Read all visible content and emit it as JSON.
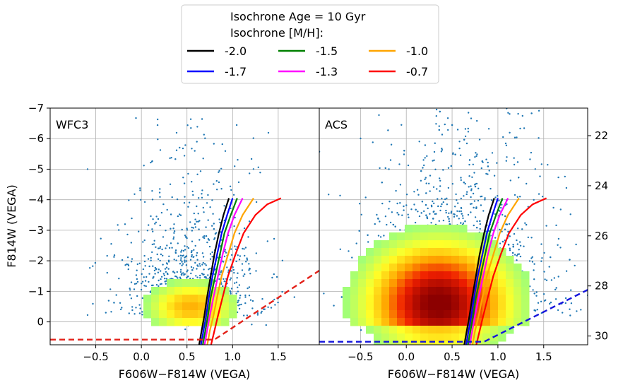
{
  "chart_data": {
    "type": "scatter",
    "legend": {
      "title_lines": [
        "Isochrone Age = 10 Gyr",
        "Isochrone [M/H]:"
      ],
      "placement": "top-center",
      "entries": [
        {
          "label": "-2.0",
          "color": "#000000"
        },
        {
          "label": "-1.7",
          "color": "#0000ff"
        },
        {
          "label": "-1.5",
          "color": "#008000"
        },
        {
          "label": "-1.3",
          "color": "#ff00ff"
        },
        {
          "label": "-1.0",
          "color": "#ffa500"
        },
        {
          "label": "-0.7",
          "color": "#ff0000"
        }
      ]
    },
    "isochrones": [
      {
        "mh": "-2.0",
        "color": "#000000",
        "points": [
          [
            0.63,
            0.8
          ],
          [
            0.66,
            0.3
          ],
          [
            0.69,
            -0.2
          ],
          [
            0.72,
            -0.8
          ],
          [
            0.76,
            -1.5
          ],
          [
            0.8,
            -2.2
          ],
          [
            0.85,
            -2.9
          ],
          [
            0.9,
            -3.5
          ],
          [
            0.96,
            -4.05
          ]
        ]
      },
      {
        "mh": "-1.7",
        "color": "#0000ff",
        "points": [
          [
            0.65,
            0.8
          ],
          [
            0.68,
            0.3
          ],
          [
            0.71,
            -0.2
          ],
          [
            0.74,
            -0.8
          ],
          [
            0.78,
            -1.5
          ],
          [
            0.83,
            -2.2
          ],
          [
            0.88,
            -2.9
          ],
          [
            0.94,
            -3.5
          ],
          [
            1.0,
            -4.05
          ]
        ]
      },
      {
        "mh": "-1.5",
        "color": "#008000",
        "points": [
          [
            0.67,
            0.8
          ],
          [
            0.7,
            0.3
          ],
          [
            0.73,
            -0.2
          ],
          [
            0.76,
            -0.8
          ],
          [
            0.81,
            -1.5
          ],
          [
            0.86,
            -2.2
          ],
          [
            0.91,
            -2.9
          ],
          [
            0.98,
            -3.5
          ],
          [
            1.05,
            -4.05
          ]
        ]
      },
      {
        "mh": "-1.3",
        "color": "#ff00ff",
        "points": [
          [
            0.69,
            0.8
          ],
          [
            0.72,
            0.3
          ],
          [
            0.75,
            -0.2
          ],
          [
            0.79,
            -0.8
          ],
          [
            0.84,
            -1.5
          ],
          [
            0.89,
            -2.2
          ],
          [
            0.95,
            -2.9
          ],
          [
            1.02,
            -3.5
          ],
          [
            1.11,
            -4.05
          ]
        ]
      },
      {
        "mh": "-1.0",
        "color": "#ffa500",
        "points": [
          [
            0.72,
            0.8
          ],
          [
            0.75,
            0.3
          ],
          [
            0.79,
            -0.2
          ],
          [
            0.83,
            -0.8
          ],
          [
            0.88,
            -1.5
          ],
          [
            0.95,
            -2.2
          ],
          [
            1.02,
            -2.9
          ],
          [
            1.11,
            -3.5
          ],
          [
            1.23,
            -4.05
          ]
        ]
      },
      {
        "mh": "-0.7",
        "color": "#ff0000",
        "points": [
          [
            0.76,
            0.8
          ],
          [
            0.8,
            0.3
          ],
          [
            0.84,
            -0.2
          ],
          [
            0.89,
            -0.8
          ],
          [
            0.95,
            -1.5
          ],
          [
            1.03,
            -2.2
          ],
          [
            1.12,
            -2.9
          ],
          [
            1.25,
            -3.5
          ],
          [
            1.38,
            -3.85
          ],
          [
            1.53,
            -4.05
          ]
        ]
      }
    ],
    "panels": [
      {
        "id": "wfc3",
        "label": "WFC3",
        "xlabel": "F606W−F814W (VEGA)",
        "ylabel": "F814W (VEGA)",
        "xlim": [
          -1.0,
          1.95
        ],
        "ylim": [
          0.75,
          -7.0
        ],
        "xticks": [
          -0.5,
          0.0,
          0.5,
          1.0,
          1.5
        ],
        "xtick_labels": [
          "−0.5",
          "0.0",
          "0.5",
          "1.0",
          "1.5"
        ],
        "yticks": [
          0,
          -1,
          -2,
          -3,
          -4,
          -5,
          -6,
          -7
        ],
        "ytick_labels": [
          "0",
          "−1",
          "−2",
          "−3",
          "−4",
          "−5",
          "−6",
          "−7"
        ],
        "grid": true,
        "limit_line": {
          "color": "#e32119",
          "points": [
            [
              -1.0,
              0.58
            ],
            [
              0.8,
              0.58
            ],
            [
              1.95,
              -1.68
            ]
          ]
        },
        "density": {
          "center": [
            0.55,
            -0.5
          ],
          "spread": [
            0.35,
            0.6
          ],
          "peak": 0.55
        }
      },
      {
        "id": "acs",
        "label": "ACS",
        "xlabel": "F606W−F814W (VEGA)",
        "xlim": [
          -0.95,
          1.98
        ],
        "ylim": [
          0.75,
          -7.0
        ],
        "xticks": [
          -0.5,
          0.0,
          0.5,
          1.0,
          1.5
        ],
        "xtick_labels": [
          "−0.5",
          "0.0",
          "0.5",
          "1.0",
          "1.5"
        ],
        "right_axis": {
          "ylim": [
            30.35,
            20.9
          ],
          "ticks": [
            22,
            24,
            26,
            28,
            30
          ],
          "tick_labels": [
            "22",
            "24",
            "26",
            "28",
            "30"
          ]
        },
        "grid": true,
        "limit_line": {
          "color": "#1414dc",
          "points": [
            [
              -0.95,
              0.65
            ],
            [
              0.85,
              0.65
            ],
            [
              1.98,
              -1.05
            ]
          ]
        },
        "density": {
          "center": [
            0.35,
            -0.6
          ],
          "spread": [
            0.55,
            1.4
          ],
          "peak": 1.0
        }
      }
    ]
  }
}
